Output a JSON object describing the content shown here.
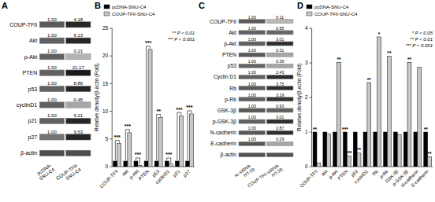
{
  "chart_data": [
    {
      "type": "blot",
      "title": "A",
      "categories": [
        "COUP-TFII",
        "Akt",
        "p-Akt",
        "PTEN",
        "p53",
        "cyclinD1",
        "p21",
        "p27",
        "β-actin"
      ],
      "data_labels": true,
      "series": [
        {
          "name": "pcDNA-\nSNU-C4",
          "values": [
            1.0,
            1.0,
            1.0,
            1.0,
            1.0,
            1.0,
            1.0,
            1.0,
            null
          ],
          "value_labels": [
            "1.00",
            "1.00",
            "1.00",
            "1.00",
            "1.00",
            "1.00",
            "1.00",
            "1.00",
            null
          ],
          "colors": [
            "#595959",
            "#616161",
            "#616161",
            "#616161",
            "#616161",
            "#616161",
            "#616161",
            "#737373",
            "#4d4d4d"
          ]
        },
        {
          "name": "COUP-TFII-\nSNU-C4",
          "values": [
            4.18,
            6.13,
            0.21,
            21.17,
            8.86,
            0.45,
            9.21,
            9.53,
            null
          ],
          "value_labels": [
            "4.18",
            "6.13",
            "0.21",
            "21.17",
            "8.86",
            "0.45",
            "9.21",
            "9.53",
            null
          ],
          "colors": [
            "#262626",
            "#262626",
            "#b3b3b3",
            "#1a1a1a",
            "#262626",
            "#a6a6a6",
            "#262626",
            "#262626",
            "#4d4d4d"
          ]
        }
      ]
    },
    {
      "type": "bar",
      "title": "B",
      "categories": [
        "COUP-TFII",
        "Akt",
        "p-Akt",
        "PTEN",
        "p53",
        "cyclinD1",
        "p21",
        "p27"
      ],
      "series": [
        {
          "name": "pcDNA-SNU-C4",
          "color": "#000000",
          "values": [
            1.0,
            1.0,
            1.0,
            1.0,
            1.0,
            1.0,
            1.0,
            1.0
          ]
        },
        {
          "name": "COUP-TFII-SNU-C4",
          "color": "#c8c8c8",
          "values": [
            4.18,
            6.13,
            0.21,
            21.17,
            8.86,
            0.45,
            9.21,
            9.53
          ]
        }
      ],
      "significance": [
        "***",
        "***",
        "***",
        "***",
        "**",
        "***",
        "***",
        "***"
      ],
      "ylabel": "Relative density/β-actin (Fold)",
      "ylim": [
        0,
        25
      ],
      "yticks": [
        0,
        5,
        10,
        15,
        20,
        25
      ],
      "annotations": [
        "** P < 0.01",
        "*** P < 0.001"
      ],
      "legend": "upper left"
    },
    {
      "type": "blot",
      "title": "C",
      "categories": [
        "COUP-TFII",
        "Akt",
        "p-Akt",
        "PTEN",
        "p53",
        "Cyclin D1",
        "Rb",
        "p-Rb",
        "GSK-3β",
        "p-GSK-3β",
        "N-cadherin",
        "E-cadherin",
        "β-actin"
      ],
      "data_labels": true,
      "series": [
        {
          "name": "sc-siRNA-\nHT-29",
          "values": [
            1.0,
            1.0,
            1.0,
            1.0,
            1.0,
            1.0,
            1.0,
            1.0,
            1.0,
            1.0,
            1.0,
            1.0,
            null
          ],
          "value_labels": [
            "1.00",
            "1.00",
            "1.00",
            "1.00",
            "1.00",
            "1.00",
            "1.00",
            "1.00",
            "1.00",
            "1.00",
            "1.00",
            "1.00",
            null
          ],
          "colors": [
            "#595959",
            "#616161",
            "#616161",
            "#595959",
            "#666666",
            "#616161",
            "#595959",
            "#616161",
            "#595959",
            "#616161",
            "#595959",
            "#595959",
            "#525252"
          ]
        },
        {
          "name": "COUP-TFII-siRNA-\nHT-29",
          "values": [
            0.11,
            0.95,
            3.01,
            0.31,
            0.39,
            2.43,
            3.75,
            3.19,
            0.93,
            3.01,
            2.87,
            0.29,
            null
          ],
          "value_labels": [
            "0.11",
            "0.95",
            "3.01",
            "0.31",
            "0.39",
            "2.43",
            "3.75",
            "3.19",
            "0.93",
            "3.01",
            "2.87",
            "0.29",
            null
          ],
          "colors": [
            "#b8b8b8",
            "#666666",
            "#2e2e2e",
            "#a6a6a6",
            "#a6a6a6",
            "#2e2e2e",
            "#2e2e2e",
            "#333333",
            "#616161",
            "#2e2e2e",
            "#2e2e2e",
            "#a6a6a6",
            "#525252"
          ]
        }
      ]
    },
    {
      "type": "bar",
      "title": "D",
      "categories": [
        "COUP-TFII",
        "Akt",
        "p-Akt",
        "PTEN",
        "p53",
        "cyclinD1",
        "Rb",
        "p-Rb",
        "GSK-3β",
        "p-GSK-3β",
        "N-cadherin",
        "E-cadherin"
      ],
      "series": [
        {
          "name": "pcDNA-SNU-C4",
          "color": "#000000",
          "values": [
            1.0,
            1.0,
            1.0,
            1.0,
            1.0,
            1.0,
            1.0,
            1.0,
            1.0,
            1.0,
            1.0,
            1.0
          ],
          "significance": [
            "**",
            null,
            null,
            "***",
            null,
            null,
            null,
            null,
            null,
            null,
            null,
            "**"
          ]
        },
        {
          "name": "COUP-TFII-SNU-C4",
          "color": "#c8c8c8",
          "values": [
            0.11,
            0.95,
            3.01,
            0.31,
            0.39,
            2.43,
            3.75,
            3.19,
            0.93,
            3.01,
            2.87,
            0.29
          ],
          "significance": [
            null,
            null,
            "**",
            "***",
            "**",
            "**",
            "*",
            "**",
            null,
            "**",
            null,
            "**"
          ]
        }
      ],
      "ylabel": "Relative density/β-actin (Fold)",
      "ylim": [
        0,
        4
      ],
      "yticks": [
        0,
        1,
        2,
        3,
        4
      ],
      "annotations": [
        "* P < 0.05",
        "** P < 0.01",
        "*** P < 0.001"
      ],
      "legend": "upper left"
    }
  ]
}
